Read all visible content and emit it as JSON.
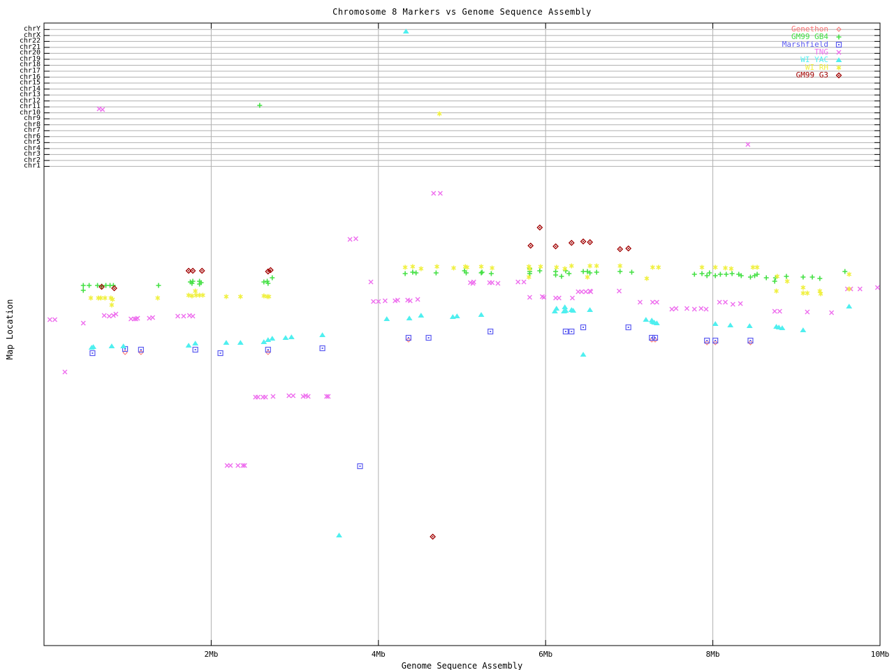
{
  "chart_data": {
    "type": "scatter",
    "title": "Chromosome 8 Markers vs Genome Sequence Assembly",
    "xlabel": "Genome Sequence Assembly",
    "ylabel": "Map Location",
    "x_tick_labels": [
      "2Mb",
      "4Mb",
      "6Mb",
      "8Mb",
      "10Mb"
    ],
    "x_tick_values_mb": [
      2,
      4,
      6,
      8,
      10
    ],
    "xlim_mb": [
      0,
      10
    ],
    "grid": true,
    "legend_position": "top-right",
    "y_axis_chromosome_rows": [
      "chrY",
      "chrX",
      "chr22",
      "chr21",
      "chr20",
      "chr19",
      "chr18",
      "chr17",
      "chr16",
      "chr15",
      "chr14",
      "chr13",
      "chr12",
      "chr11",
      "chr10",
      "chr9",
      "chr8",
      "chr7",
      "chr6",
      "chr5",
      "chr4",
      "chr3",
      "chr2",
      "chr1"
    ],
    "y_units": "map location (no numeric scale printed; values below given as screen-pixel y)",
    "series": [
      {
        "name": "Genethon",
        "marker": "open-diamond",
        "color": "#fa7373",
        "points": [
          [
            0.97,
            505
          ],
          [
            1.16,
            505
          ],
          [
            2.68,
            505
          ],
          [
            4.36,
            487
          ],
          [
            7.27,
            487
          ],
          [
            7.31,
            487
          ],
          [
            7.93,
            491
          ],
          [
            8.03,
            491
          ],
          [
            8.45,
            491
          ]
        ]
      },
      {
        "name": "GM99 GB4",
        "marker": "plus",
        "color": "#44e044",
        "points": [
          [
            2.58,
            151
          ],
          [
            0.47,
            409
          ],
          [
            0.54,
            409
          ],
          [
            0.47,
            416
          ],
          [
            0.64,
            409
          ],
          [
            0.69,
            410
          ],
          [
            0.74,
            409
          ],
          [
            0.79,
            409
          ],
          [
            0.83,
            409
          ],
          [
            1.37,
            409
          ],
          [
            1.75,
            404
          ],
          [
            1.78,
            403
          ],
          [
            1.77,
            406
          ],
          [
            1.86,
            403
          ],
          [
            1.88,
            405
          ],
          [
            1.86,
            407
          ],
          [
            2.63,
            404
          ],
          [
            2.67,
            403
          ],
          [
            2.68,
            406
          ],
          [
            2.73,
            398
          ],
          [
            4.32,
            392
          ],
          [
            4.41,
            390
          ],
          [
            4.45,
            391
          ],
          [
            4.69,
            391
          ],
          [
            5.03,
            388
          ],
          [
            5.05,
            391
          ],
          [
            5.23,
            391
          ],
          [
            5.24,
            390
          ],
          [
            5.35,
            392
          ],
          [
            5.81,
            385
          ],
          [
            5.81,
            389
          ],
          [
            5.81,
            392
          ],
          [
            5.93,
            388
          ],
          [
            6.12,
            389
          ],
          [
            6.12,
            394
          ],
          [
            6.19,
            396
          ],
          [
            6.24,
            388
          ],
          [
            6.28,
            392
          ],
          [
            6.45,
            389
          ],
          [
            6.5,
            389
          ],
          [
            6.53,
            391
          ],
          [
            6.61,
            390
          ],
          [
            6.89,
            389
          ],
          [
            7.03,
            390
          ],
          [
            7.78,
            393
          ],
          [
            7.87,
            392
          ],
          [
            7.93,
            395
          ],
          [
            7.96,
            391
          ],
          [
            8.03,
            395
          ],
          [
            8.09,
            393
          ],
          [
            8.16,
            393
          ],
          [
            8.23,
            392
          ],
          [
            8.31,
            393
          ],
          [
            8.34,
            395
          ],
          [
            8.45,
            397
          ],
          [
            8.5,
            395
          ],
          [
            8.53,
            393
          ],
          [
            8.64,
            398
          ],
          [
            8.74,
            403
          ],
          [
            8.75,
            398
          ],
          [
            8.88,
            396
          ],
          [
            9.08,
            397
          ],
          [
            9.19,
            397
          ],
          [
            9.28,
            399
          ],
          [
            9.58,
            389
          ]
        ]
      },
      {
        "name": "Marshfield",
        "marker": "square-dot",
        "color": "#5a5af0",
        "points": [
          [
            0.58,
            506
          ],
          [
            0.97,
            500
          ],
          [
            1.16,
            501
          ],
          [
            1.81,
            501
          ],
          [
            2.11,
            506
          ],
          [
            2.68,
            501
          ],
          [
            3.33,
            499
          ],
          [
            3.78,
            668
          ],
          [
            4.36,
            484
          ],
          [
            4.6,
            484
          ],
          [
            5.34,
            475
          ],
          [
            6.24,
            475
          ],
          [
            6.31,
            475
          ],
          [
            6.45,
            469
          ],
          [
            6.99,
            469
          ],
          [
            7.27,
            484
          ],
          [
            7.31,
            484
          ],
          [
            7.93,
            488
          ],
          [
            8.03,
            488
          ],
          [
            8.45,
            488
          ]
        ]
      },
      {
        "name": "TNG",
        "marker": "x-cross",
        "color": "#ee6eee",
        "points": [
          [
            0.66,
            156
          ],
          [
            0.7,
            157
          ],
          [
            8.42,
            207
          ],
          [
            3.66,
            343
          ],
          [
            3.73,
            342
          ],
          [
            4.66,
            277
          ],
          [
            4.74,
            277
          ],
          [
            0.07,
            458
          ],
          [
            0.13,
            458
          ],
          [
            0.25,
            533
          ],
          [
            0.47,
            463
          ],
          [
            0.72,
            452
          ],
          [
            0.78,
            453
          ],
          [
            0.83,
            452
          ],
          [
            0.86,
            450
          ],
          [
            1.04,
            457
          ],
          [
            1.08,
            457
          ],
          [
            1.1,
            457
          ],
          [
            1.12,
            456
          ],
          [
            1.26,
            456
          ],
          [
            1.3,
            455
          ],
          [
            1.6,
            453
          ],
          [
            1.67,
            453
          ],
          [
            1.74,
            452
          ],
          [
            1.78,
            453
          ],
          [
            3.91,
            404
          ],
          [
            3.94,
            432
          ],
          [
            4.0,
            432
          ],
          [
            4.08,
            431
          ],
          [
            4.2,
            431
          ],
          [
            4.23,
            430
          ],
          [
            4.35,
            430
          ],
          [
            4.38,
            431
          ],
          [
            4.47,
            429
          ],
          [
            5.1,
            405
          ],
          [
            5.13,
            406
          ],
          [
            5.14,
            404
          ],
          [
            5.33,
            405
          ],
          [
            5.36,
            405
          ],
          [
            5.43,
            406
          ],
          [
            5.67,
            404
          ],
          [
            5.74,
            404
          ],
          [
            5.81,
            426
          ],
          [
            5.96,
            425
          ],
          [
            5.98,
            426
          ],
          [
            6.12,
            427
          ],
          [
            6.16,
            427
          ],
          [
            6.32,
            427
          ],
          [
            6.39,
            418
          ],
          [
            6.43,
            418
          ],
          [
            6.48,
            418
          ],
          [
            6.53,
            417
          ],
          [
            6.54,
            418
          ],
          [
            6.88,
            417
          ],
          [
            7.13,
            433
          ],
          [
            7.28,
            433
          ],
          [
            7.33,
            433
          ],
          [
            7.51,
            443
          ],
          [
            7.56,
            442
          ],
          [
            7.69,
            442
          ],
          [
            7.78,
            443
          ],
          [
            7.86,
            442
          ],
          [
            7.92,
            443
          ],
          [
            8.08,
            433
          ],
          [
            8.15,
            433
          ],
          [
            8.24,
            436
          ],
          [
            8.33,
            435
          ],
          [
            8.74,
            446
          ],
          [
            8.8,
            446
          ],
          [
            9.13,
            447
          ],
          [
            9.42,
            448
          ],
          [
            9.61,
            414
          ],
          [
            9.65,
            414
          ],
          [
            9.76,
            414
          ],
          [
            9.97,
            412
          ],
          [
            2.53,
            569
          ],
          [
            2.56,
            569
          ],
          [
            2.62,
            569
          ],
          [
            2.65,
            569
          ],
          [
            2.74,
            568
          ],
          [
            2.93,
            567
          ],
          [
            2.98,
            567
          ],
          [
            3.1,
            568
          ],
          [
            3.13,
            567
          ],
          [
            3.16,
            568
          ],
          [
            3.38,
            568
          ],
          [
            3.4,
            568
          ],
          [
            2.19,
            667
          ],
          [
            2.23,
            667
          ],
          [
            2.32,
            667
          ],
          [
            2.38,
            667
          ],
          [
            2.4,
            667
          ]
        ]
      },
      {
        "name": "WI YAC",
        "marker": "triangle",
        "color": "#4fefef",
        "points": [
          [
            4.33,
            45
          ],
          [
            0.57,
            498
          ],
          [
            0.59,
            497
          ],
          [
            0.81,
            496
          ],
          [
            0.95,
            496
          ],
          [
            1.73,
            495
          ],
          [
            1.81,
            492
          ],
          [
            2.18,
            491
          ],
          [
            2.35,
            491
          ],
          [
            2.63,
            490
          ],
          [
            2.68,
            487
          ],
          [
            2.73,
            485
          ],
          [
            2.89,
            484
          ],
          [
            2.96,
            483
          ],
          [
            3.33,
            480
          ],
          [
            4.1,
            457
          ],
          [
            4.37,
            456
          ],
          [
            4.51,
            452
          ],
          [
            4.89,
            454
          ],
          [
            4.94,
            453
          ],
          [
            5.23,
            451
          ],
          [
            6.11,
            446
          ],
          [
            6.13,
            442
          ],
          [
            6.22,
            446
          ],
          [
            6.23,
            440
          ],
          [
            6.24,
            445
          ],
          [
            6.31,
            444
          ],
          [
            6.33,
            445
          ],
          [
            6.53,
            444
          ],
          [
            6.45,
            508
          ],
          [
            7.2,
            458
          ],
          [
            7.27,
            459
          ],
          [
            7.28,
            461
          ],
          [
            7.3,
            462
          ],
          [
            7.33,
            463
          ],
          [
            8.03,
            464
          ],
          [
            8.21,
            466
          ],
          [
            8.44,
            467
          ],
          [
            8.76,
            468
          ],
          [
            8.79,
            469
          ],
          [
            8.83,
            470
          ],
          [
            9.08,
            473
          ],
          [
            9.63,
            439
          ],
          [
            3.53,
            767
          ]
        ]
      },
      {
        "name": "WI RH",
        "marker": "asterisk",
        "color": "#f0f040",
        "points": [
          [
            4.73,
            163
          ],
          [
            0.56,
            427
          ],
          [
            0.65,
            427
          ],
          [
            0.68,
            427
          ],
          [
            0.73,
            427
          ],
          [
            0.8,
            427
          ],
          [
            0.82,
            429
          ],
          [
            0.81,
            437
          ],
          [
            1.36,
            427
          ],
          [
            1.73,
            423
          ],
          [
            1.77,
            424
          ],
          [
            1.82,
            423
          ],
          [
            1.86,
            423
          ],
          [
            1.9,
            423
          ],
          [
            1.81,
            417
          ],
          [
            2.18,
            425
          ],
          [
            2.35,
            425
          ],
          [
            2.63,
            424
          ],
          [
            2.67,
            425
          ],
          [
            2.69,
            425
          ],
          [
            4.32,
            383
          ],
          [
            4.41,
            382
          ],
          [
            4.51,
            385
          ],
          [
            4.7,
            382
          ],
          [
            4.9,
            384
          ],
          [
            5.04,
            382
          ],
          [
            5.06,
            383
          ],
          [
            5.23,
            382
          ],
          [
            5.36,
            384
          ],
          [
            5.8,
            382
          ],
          [
            5.81,
            385
          ],
          [
            5.8,
            397
          ],
          [
            5.94,
            382
          ],
          [
            6.13,
            383
          ],
          [
            6.23,
            385
          ],
          [
            6.31,
            381
          ],
          [
            6.53,
            381
          ],
          [
            6.61,
            381
          ],
          [
            6.89,
            381
          ],
          [
            6.5,
            397
          ],
          [
            7.21,
            399
          ],
          [
            7.28,
            383
          ],
          [
            7.35,
            383
          ],
          [
            7.87,
            383
          ],
          [
            8.03,
            383
          ],
          [
            8.15,
            384
          ],
          [
            8.22,
            385
          ],
          [
            8.48,
            383
          ],
          [
            8.53,
            383
          ],
          [
            8.77,
            396
          ],
          [
            8.89,
            403
          ],
          [
            8.76,
            417
          ],
          [
            9.08,
            412
          ],
          [
            9.08,
            420
          ],
          [
            9.13,
            420
          ],
          [
            9.28,
            417
          ],
          [
            9.29,
            421
          ],
          [
            9.63,
            393
          ],
          [
            9.63,
            414
          ]
        ]
      },
      {
        "name": "GM99 G3",
        "marker": "diamond-dot",
        "color": "#a00000",
        "points": [
          [
            0.69,
            411
          ],
          [
            0.84,
            413
          ],
          [
            1.73,
            388
          ],
          [
            1.78,
            388
          ],
          [
            1.89,
            388
          ],
          [
            2.68,
            389
          ],
          [
            2.71,
            387
          ],
          [
            5.82,
            352
          ],
          [
            5.93,
            326
          ],
          [
            6.12,
            353
          ],
          [
            6.31,
            348
          ],
          [
            6.45,
            346
          ],
          [
            6.53,
            347
          ],
          [
            6.89,
            357
          ],
          [
            6.99,
            356
          ],
          [
            4.65,
            769
          ]
        ]
      }
    ]
  }
}
